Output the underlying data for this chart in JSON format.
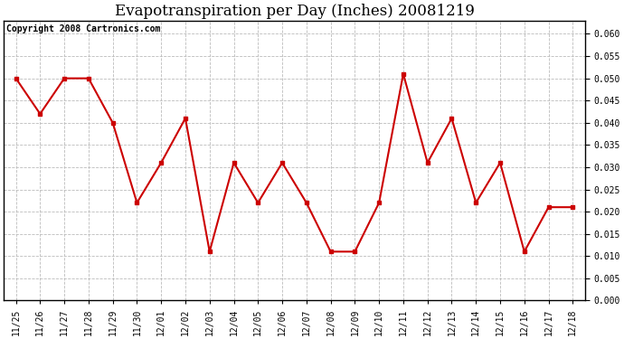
{
  "title": "Evapotranspiration per Day (Inches) 20081219",
  "copyright": "Copyright 2008 Cartronics.com",
  "x_labels": [
    "11/25",
    "11/26",
    "11/27",
    "11/28",
    "11/29",
    "11/30",
    "12/01",
    "12/02",
    "12/03",
    "12/04",
    "12/05",
    "12/06",
    "12/07",
    "12/08",
    "12/09",
    "12/10",
    "12/11",
    "12/12",
    "12/13",
    "12/14",
    "12/15",
    "12/16",
    "12/17",
    "12/18"
  ],
  "y_values": [
    0.05,
    0.042,
    0.05,
    0.05,
    0.04,
    0.022,
    0.031,
    0.041,
    0.011,
    0.031,
    0.022,
    0.031,
    0.022,
    0.011,
    0.011,
    0.022,
    0.051,
    0.031,
    0.041,
    0.022,
    0.031,
    0.011,
    0.021,
    0.021
  ],
  "line_color": "#cc0000",
  "marker": "s",
  "marker_size": 3,
  "ylim": [
    0.0,
    0.063
  ],
  "yticks": [
    0.0,
    0.005,
    0.01,
    0.015,
    0.02,
    0.025,
    0.03,
    0.035,
    0.04,
    0.045,
    0.05,
    0.055,
    0.06
  ],
  "background_color": "#ffffff",
  "grid_color": "#bbbbbb",
  "title_fontsize": 12,
  "copyright_fontsize": 7,
  "tick_fontsize": 7,
  "ytick_fontsize": 7
}
